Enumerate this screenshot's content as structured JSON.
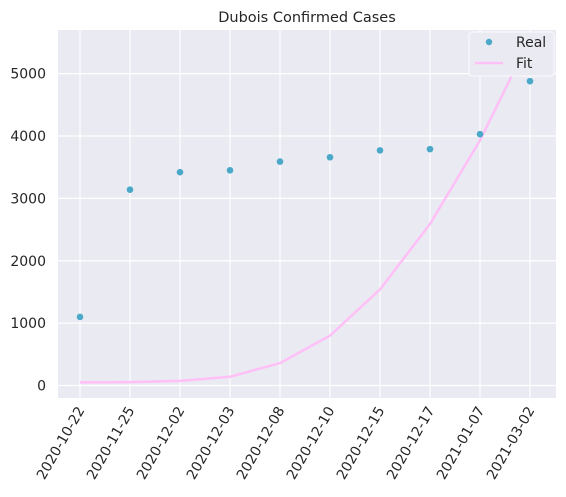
{
  "chart_data": {
    "type": "line",
    "title": "Dubois Confirmed Cases",
    "xlabel": "",
    "ylabel": "",
    "categories": [
      "2020-10-22",
      "2020-11-25",
      "2020-12-02",
      "2020-12-03",
      "2020-12-08",
      "2020-12-10",
      "2020-12-15",
      "2020-12-17",
      "2021-01-07",
      "2021-03-02"
    ],
    "series": [
      {
        "name": "Real",
        "style": "points",
        "color": "#4aa8c8",
        "values": [
          1100,
          3140,
          3420,
          3450,
          3590,
          3660,
          3770,
          3790,
          4030,
          4880
        ]
      },
      {
        "name": "Fit",
        "style": "line",
        "color": "#ffbff7",
        "values": [
          50,
          55,
          75,
          140,
          360,
          800,
          1540,
          2590,
          3930,
          5560
        ]
      }
    ],
    "yticks": [
      0,
      1000,
      2000,
      3000,
      4000,
      5000
    ],
    "ylim": [
      -200,
      5700
    ],
    "grid": true,
    "legend": "top-right",
    "background": "#eaeaf2"
  }
}
